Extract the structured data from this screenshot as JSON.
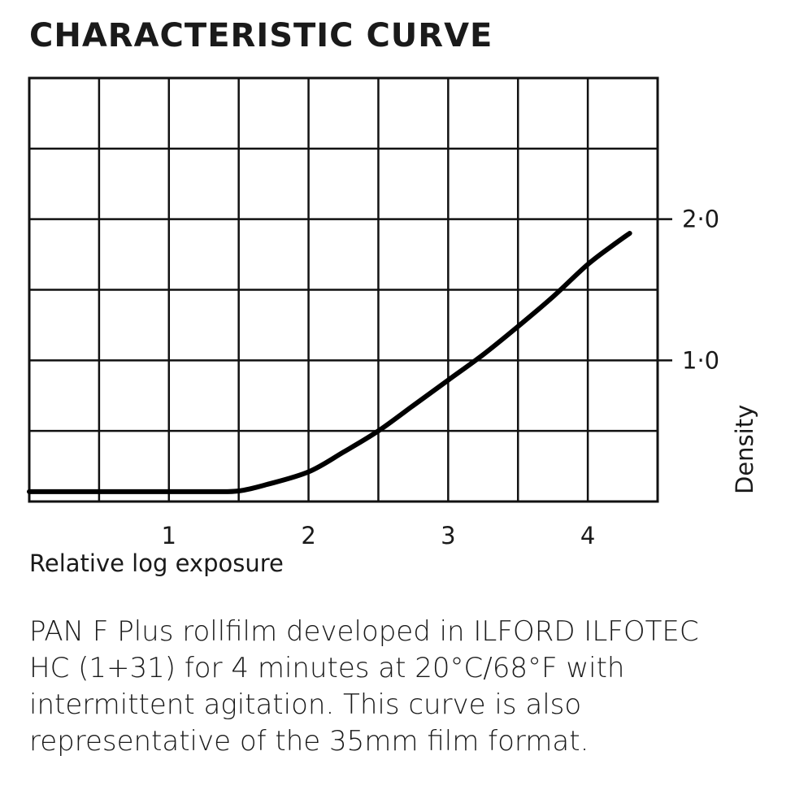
{
  "title": "CHARACTERISTIC CURVE",
  "chart_data": {
    "type": "line",
    "title": "CHARACTERISTIC CURVE",
    "xlabel": "Relative log exposure",
    "ylabel": "Density",
    "xlim": [
      0,
      4.5
    ],
    "ylim": [
      0,
      3.0
    ],
    "x_ticks": [
      1,
      2,
      3,
      4
    ],
    "x_tick_labels": [
      "1",
      "2",
      "3",
      "4"
    ],
    "y_ticks": [
      1.0,
      2.0
    ],
    "y_tick_labels": [
      "1·0",
      "2·0"
    ],
    "grid": true,
    "grid_x_step": 0.5,
    "grid_y_step": 0.5,
    "series": [
      {
        "name": "",
        "color": "#000000",
        "points": [
          [
            0.0,
            0.07
          ],
          [
            0.5,
            0.07
          ],
          [
            1.0,
            0.07
          ],
          [
            1.3,
            0.07
          ],
          [
            1.5,
            0.075
          ],
          [
            1.7,
            0.12
          ],
          [
            2.0,
            0.21
          ],
          [
            2.25,
            0.35
          ],
          [
            2.5,
            0.5
          ],
          [
            2.75,
            0.68
          ],
          [
            3.0,
            0.86
          ],
          [
            3.25,
            1.04
          ],
          [
            3.5,
            1.24
          ],
          [
            3.75,
            1.45
          ],
          [
            4.0,
            1.68
          ],
          [
            4.2,
            1.83
          ],
          [
            4.3,
            1.9
          ]
        ]
      }
    ]
  },
  "caption": {
    "line1": "PAN F Plus rollfilm developed in ILFORD ILFOTEC",
    "line2": "HC (1+31) for 4 minutes at 20°C/68°F with",
    "line3": "intermittent agitation. This curve is also",
    "line4": "representative of the 35mm film format."
  }
}
